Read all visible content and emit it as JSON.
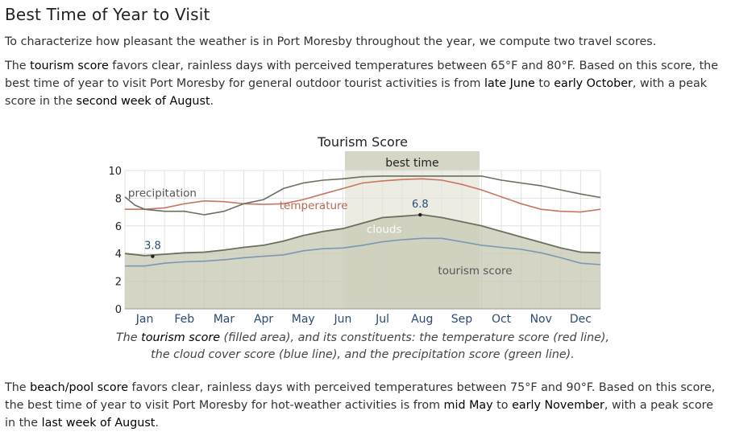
{
  "heading": "Best Time of Year to Visit",
  "intro": "To characterize how pleasant the weather is in Port Moresby throughout the year, we compute two travel scores.",
  "tourism_paragraph": {
    "t1": "The ",
    "b1": "tourism score",
    "t2": " favors clear, rainless days with perceived temperatures between 65°F and 80°F. Based on this score, the best time of year to visit Port Moresby for general outdoor tourist activities is from ",
    "b2": "late June",
    "t3": " to ",
    "b3": "early October",
    "t4": ", with a peak score in the ",
    "b4": "second week of August",
    "t5": "."
  },
  "caption": {
    "c1": "The ",
    "c2": "tourism score",
    "c3": " (filled area), and its constituents: the temperature score (red line), the cloud cover score (blue line), and the precipitation score (green line)."
  },
  "beach_paragraph": {
    "t1": "The ",
    "b1": "beach/pool score",
    "t2": " favors clear, rainless days with perceived temperatures between 75°F and 90°F. Based on this score, the best time of year to visit Port Moresby for hot-weather activities is from ",
    "b2": "mid May",
    "t3": " to ",
    "b3": "early November",
    "t4": ", with a peak score in the ",
    "b4": "last week of August",
    "t5": "."
  },
  "chart_data": {
    "type": "area",
    "title": "Tourism Score",
    "x_unit": "month",
    "xlim": [
      0,
      12
    ],
    "ylim": [
      0,
      10
    ],
    "y_ticks": [
      0,
      2,
      4,
      6,
      8,
      10
    ],
    "months": [
      "Jan",
      "Feb",
      "Mar",
      "Apr",
      "May",
      "Jun",
      "Jul",
      "Aug",
      "Sep",
      "Oct",
      "Nov",
      "Dec"
    ],
    "grid": true,
    "best_time": {
      "label": "best time",
      "start": 5.55,
      "end": 8.95
    },
    "series": [
      {
        "name": "tourism score",
        "kind": "area",
        "color": "#c9c9b5",
        "stroke": "#6b6f5e",
        "points": [
          [
            0,
            4.0
          ],
          [
            0.5,
            3.85
          ],
          [
            1,
            3.95
          ],
          [
            1.5,
            4.05
          ],
          [
            2,
            4.1
          ],
          [
            2.5,
            4.25
          ],
          [
            3,
            4.45
          ],
          [
            3.5,
            4.6
          ],
          [
            4,
            4.9
          ],
          [
            4.5,
            5.3
          ],
          [
            5,
            5.6
          ],
          [
            5.5,
            5.8
          ],
          [
            6,
            6.2
          ],
          [
            6.5,
            6.6
          ],
          [
            7,
            6.7
          ],
          [
            7.5,
            6.8
          ],
          [
            8,
            6.6
          ],
          [
            8.5,
            6.3
          ],
          [
            9,
            6.0
          ],
          [
            9.5,
            5.6
          ],
          [
            10,
            5.2
          ],
          [
            10.5,
            4.8
          ],
          [
            11,
            4.4
          ],
          [
            11.5,
            4.1
          ],
          [
            12,
            4.05
          ]
        ]
      },
      {
        "name": "temperature",
        "kind": "line",
        "color": "#c97560",
        "points": [
          [
            0,
            7.2
          ],
          [
            0.5,
            7.2
          ],
          [
            1,
            7.3
          ],
          [
            1.5,
            7.6
          ],
          [
            2,
            7.8
          ],
          [
            2.5,
            7.75
          ],
          [
            3,
            7.6
          ],
          [
            3.5,
            7.55
          ],
          [
            4,
            7.6
          ],
          [
            4.5,
            7.9
          ],
          [
            5,
            8.3
          ],
          [
            5.5,
            8.7
          ],
          [
            6,
            9.1
          ],
          [
            6.5,
            9.25
          ],
          [
            7,
            9.35
          ],
          [
            7.5,
            9.4
          ],
          [
            8,
            9.3
          ],
          [
            8.5,
            9.0
          ],
          [
            9,
            8.6
          ],
          [
            9.5,
            8.1
          ],
          [
            10,
            7.6
          ],
          [
            10.5,
            7.2
          ],
          [
            11,
            7.05
          ],
          [
            11.5,
            7.0
          ],
          [
            12,
            7.2
          ]
        ]
      },
      {
        "name": "clouds",
        "kind": "line",
        "color": "#7a97b3",
        "points": [
          [
            0,
            3.1
          ],
          [
            0.5,
            3.1
          ],
          [
            1,
            3.3
          ],
          [
            1.5,
            3.4
          ],
          [
            2,
            3.45
          ],
          [
            2.5,
            3.55
          ],
          [
            3,
            3.7
          ],
          [
            3.5,
            3.8
          ],
          [
            4,
            3.9
          ],
          [
            4.5,
            4.2
          ],
          [
            5,
            4.35
          ],
          [
            5.5,
            4.4
          ],
          [
            6,
            4.6
          ],
          [
            6.5,
            4.85
          ],
          [
            7,
            5.0
          ],
          [
            7.5,
            5.1
          ],
          [
            8,
            5.1
          ],
          [
            8.5,
            4.85
          ],
          [
            9,
            4.6
          ],
          [
            9.5,
            4.45
          ],
          [
            10,
            4.3
          ],
          [
            10.5,
            4.05
          ],
          [
            11,
            3.7
          ],
          [
            11.5,
            3.3
          ],
          [
            12,
            3.2
          ]
        ]
      },
      {
        "name": "precipitation",
        "kind": "line",
        "color": "#6b6f5e",
        "points": [
          [
            0,
            8.1
          ],
          [
            0.25,
            7.5
          ],
          [
            0.5,
            7.2
          ],
          [
            1,
            7.05
          ],
          [
            1.5,
            7.05
          ],
          [
            2,
            6.8
          ],
          [
            2.5,
            7.05
          ],
          [
            3,
            7.6
          ],
          [
            3.5,
            7.9
          ],
          [
            4,
            8.7
          ],
          [
            4.5,
            9.1
          ],
          [
            5,
            9.3
          ],
          [
            5.5,
            9.4
          ],
          [
            6,
            9.55
          ],
          [
            6.5,
            9.6
          ],
          [
            7,
            9.6
          ],
          [
            7.5,
            9.6
          ],
          [
            8,
            9.6
          ],
          [
            8.5,
            9.6
          ],
          [
            9,
            9.6
          ],
          [
            9.5,
            9.3
          ],
          [
            10,
            9.1
          ],
          [
            10.5,
            8.9
          ],
          [
            11,
            8.6
          ],
          [
            11.5,
            8.3
          ],
          [
            12,
            8.05
          ]
        ]
      }
    ],
    "annotations": [
      {
        "text": "3.8",
        "x": 0.7,
        "y": 3.8,
        "dot": true
      },
      {
        "text": "6.8",
        "x": 7.45,
        "y": 6.8,
        "dot": true
      },
      {
        "text": "precipitation",
        "x": 0.08,
        "y": 8.1
      },
      {
        "text": "temperature",
        "x": 3.9,
        "y": 7.2
      },
      {
        "text": "clouds",
        "x": 6.1,
        "y": 5.5
      },
      {
        "text": "tourism score",
        "x": 7.9,
        "y": 2.5
      }
    ]
  }
}
